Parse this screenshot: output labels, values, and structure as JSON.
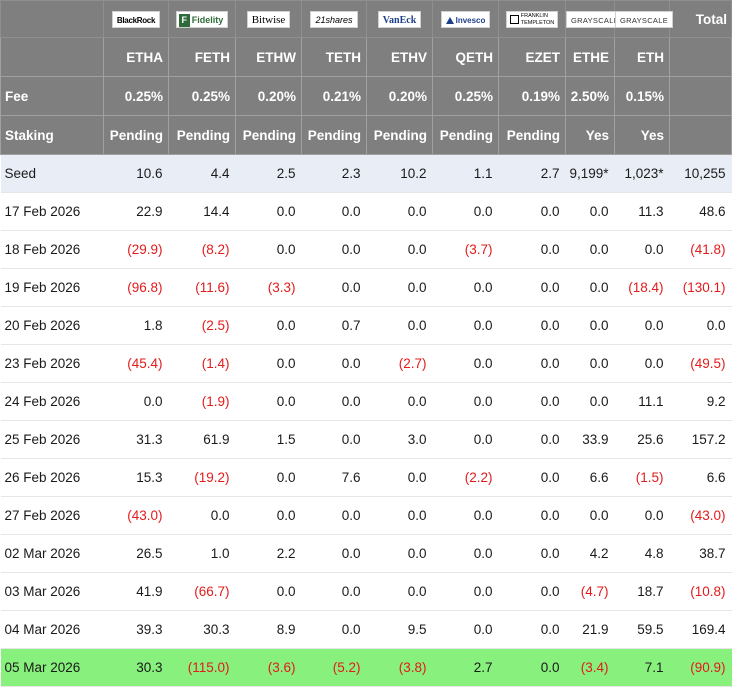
{
  "header": {
    "issuer_logos": [
      {
        "name": "blackrock-logo",
        "text": "BlackRock"
      },
      {
        "name": "fidelity-logo",
        "text": "Fidelity"
      },
      {
        "name": "bitwise-logo",
        "text": "Bitwise"
      },
      {
        "name": "21shares-logo",
        "text": "21shares"
      },
      {
        "name": "vaneck-logo",
        "text": "VanEck"
      },
      {
        "name": "invesco-logo",
        "text": "Invesco"
      },
      {
        "name": "franklin-templeton-logo",
        "text_line1": "FRANKLIN",
        "text_line2": "TEMPLETON"
      },
      {
        "name": "grayscale-logo",
        "text": "GRAYSCALE"
      },
      {
        "name": "grayscale-logo-2",
        "text": "GRAYSCALE"
      }
    ],
    "total_label": "Total",
    "tickers": [
      "ETHA",
      "FETH",
      "ETHW",
      "TETH",
      "ETHV",
      "QETH",
      "EZET",
      "ETHE",
      "ETH"
    ],
    "fee_label": "Fee",
    "fees": [
      "0.25%",
      "0.25%",
      "0.20%",
      "0.21%",
      "0.20%",
      "0.25%",
      "0.19%",
      "2.50%",
      "0.15%"
    ],
    "staking_label": "Staking",
    "staking": [
      "Pending",
      "Pending",
      "Pending",
      "Pending",
      "Pending",
      "Pending",
      "Pending",
      "Yes",
      "Yes"
    ]
  },
  "rows": [
    {
      "label": "Seed",
      "values": [
        "10.6",
        "4.4",
        "2.5",
        "2.3",
        "10.2",
        "1.1",
        "2.7",
        "9,199*",
        "1,023*",
        "10,255"
      ]
    },
    {
      "label": "17 Feb 2026",
      "values": [
        "22.9",
        "14.4",
        "0.0",
        "0.0",
        "0.0",
        "0.0",
        "0.0",
        "0.0",
        "11.3",
        "48.6"
      ]
    },
    {
      "label": "18 Feb 2026",
      "values": [
        "(29.9)",
        "(8.2)",
        "0.0",
        "0.0",
        "0.0",
        "(3.7)",
        "0.0",
        "0.0",
        "0.0",
        "(41.8)"
      ]
    },
    {
      "label": "19 Feb 2026",
      "values": [
        "(96.8)",
        "(11.6)",
        "(3.3)",
        "0.0",
        "0.0",
        "0.0",
        "0.0",
        "0.0",
        "(18.4)",
        "(130.1)"
      ]
    },
    {
      "label": "20 Feb 2026",
      "values": [
        "1.8",
        "(2.5)",
        "0.0",
        "0.7",
        "0.0",
        "0.0",
        "0.0",
        "0.0",
        "0.0",
        "0.0"
      ]
    },
    {
      "label": "23 Feb 2026",
      "values": [
        "(45.4)",
        "(1.4)",
        "0.0",
        "0.0",
        "(2.7)",
        "0.0",
        "0.0",
        "0.0",
        "0.0",
        "(49.5)"
      ]
    },
    {
      "label": "24 Feb 2026",
      "values": [
        "0.0",
        "(1.9)",
        "0.0",
        "0.0",
        "0.0",
        "0.0",
        "0.0",
        "0.0",
        "11.1",
        "9.2"
      ]
    },
    {
      "label": "25 Feb 2026",
      "values": [
        "31.3",
        "61.9",
        "1.5",
        "0.0",
        "3.0",
        "0.0",
        "0.0",
        "33.9",
        "25.6",
        "157.2"
      ]
    },
    {
      "label": "26 Feb 2026",
      "values": [
        "15.3",
        "(19.2)",
        "0.0",
        "7.6",
        "0.0",
        "(2.2)",
        "0.0",
        "6.6",
        "(1.5)",
        "6.6"
      ]
    },
    {
      "label": "27 Feb 2026",
      "values": [
        "(43.0)",
        "0.0",
        "0.0",
        "0.0",
        "0.0",
        "0.0",
        "0.0",
        "0.0",
        "0.0",
        "(43.0)"
      ]
    },
    {
      "label": "02 Mar 2026",
      "values": [
        "26.5",
        "1.0",
        "2.2",
        "0.0",
        "0.0",
        "0.0",
        "0.0",
        "4.2",
        "4.8",
        "38.7"
      ]
    },
    {
      "label": "03 Mar 2026",
      "values": [
        "41.9",
        "(66.7)",
        "0.0",
        "0.0",
        "0.0",
        "0.0",
        "0.0",
        "(4.7)",
        "18.7",
        "(10.8)"
      ]
    },
    {
      "label": "04 Mar 2026",
      "values": [
        "39.3",
        "30.3",
        "8.9",
        "0.0",
        "9.5",
        "0.0",
        "0.0",
        "21.9",
        "59.5",
        "169.4"
      ]
    },
    {
      "label": "05 Mar 2026",
      "values": [
        "30.3",
        "(115.0)",
        "(3.6)",
        "(5.2)",
        "(3.8)",
        "2.7",
        "0.0",
        "(3.4)",
        "7.1",
        "(90.9)"
      ]
    }
  ],
  "colors": {
    "header_bg": "#7f7f7f",
    "header_text": "#ffffff",
    "seed_row_bg": "#e9edf6",
    "latest_row_bg": "#88f07c",
    "negative_text": "#e21b1b"
  }
}
